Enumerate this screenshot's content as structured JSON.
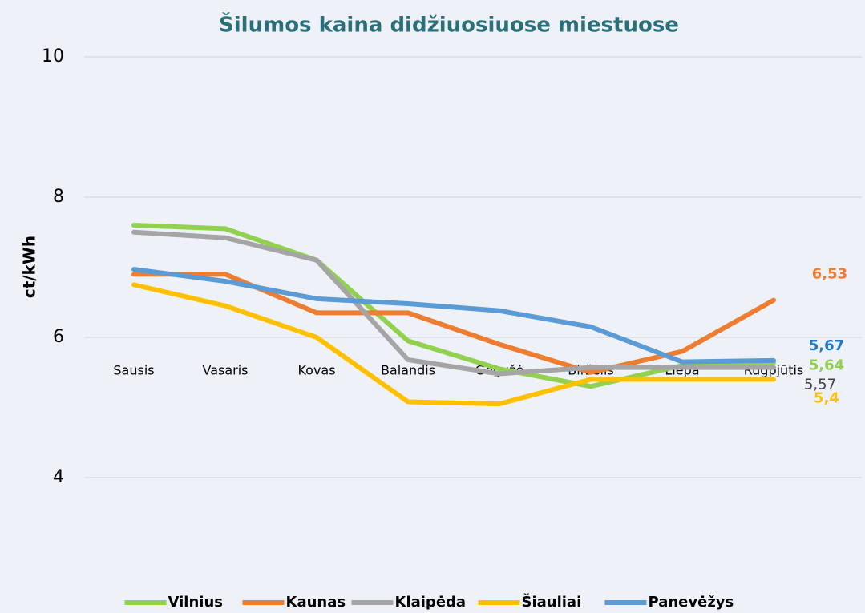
{
  "chart_data": {
    "type": "line",
    "title": "Šilumos kaina didžiuosiuose miestuose",
    "y_label": "ct/kWh",
    "categories": [
      "Sausis",
      "Vasaris",
      "Kovas",
      "Balandis",
      "Gegužė",
      "Birželis",
      "Liepa",
      "Rugpjūtis"
    ],
    "ylim": [
      4,
      10
    ],
    "yticks": [
      4,
      6,
      8,
      10
    ],
    "grid": true,
    "legend": "bottom",
    "series": [
      {
        "name": "Vilnius",
        "color": "#92d050",
        "values": [
          7.6,
          7.55,
          7.1,
          5.95,
          5.55,
          5.3,
          5.6,
          5.64
        ],
        "value_labels": [
          null,
          null,
          null,
          null,
          null,
          null,
          null,
          "5,64"
        ]
      },
      {
        "name": "Kaunas",
        "color": "#ed7d31",
        "values": [
          6.9,
          6.9,
          6.35,
          6.35,
          5.9,
          5.5,
          5.8,
          6.53
        ],
        "value_labels": [
          null,
          null,
          null,
          null,
          null,
          null,
          null,
          "6,53"
        ]
      },
      {
        "name": "Klaipėda",
        "color": "#a5a5a5",
        "values": [
          7.5,
          7.42,
          7.1,
          5.68,
          5.48,
          5.57,
          5.57,
          5.57
        ],
        "value_labels": [
          null,
          null,
          null,
          null,
          null,
          null,
          null,
          "5,57"
        ]
      },
      {
        "name": "Šiauliai",
        "color": "#ffc000",
        "values": [
          6.75,
          6.45,
          6.0,
          5.08,
          5.05,
          5.4,
          5.4,
          5.4
        ],
        "value_labels": [
          null,
          null,
          null,
          null,
          null,
          null,
          null,
          "5,4"
        ]
      },
      {
        "name": "Panevėžys",
        "color": "#5b9bd5",
        "values": [
          6.97,
          6.8,
          6.55,
          6.48,
          6.38,
          6.15,
          5.65,
          5.67
        ],
        "value_labels": [
          null,
          null,
          null,
          null,
          null,
          null,
          null,
          "5,67"
        ]
      }
    ]
  }
}
